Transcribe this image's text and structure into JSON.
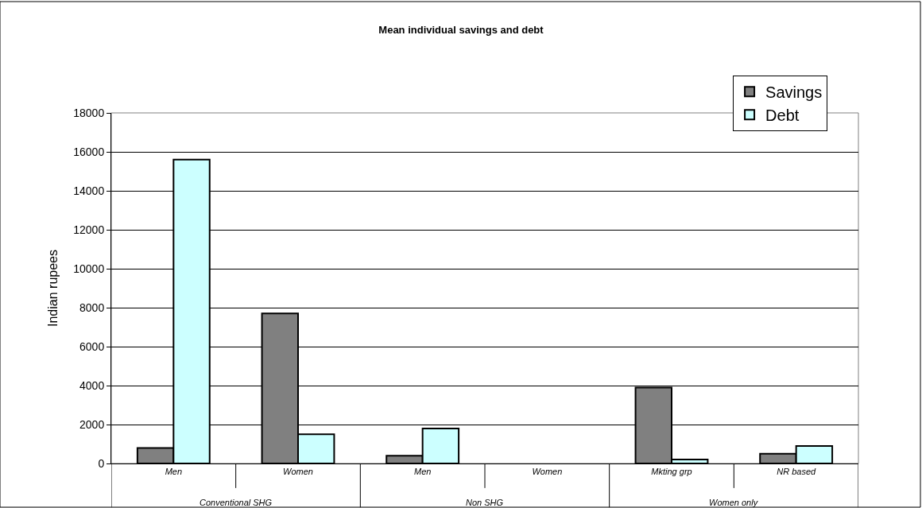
{
  "chart_data": {
    "type": "bar",
    "title": "Mean individual savings and debt",
    "ylabel": "Indian rupees",
    "categories": [
      "Men",
      "Women",
      "Men",
      "Women",
      "Mkting grp",
      "NR based"
    ],
    "series": [
      {
        "name": "Savings",
        "color": "#808080",
        "values": [
          800,
          7700,
          400,
          null,
          3900,
          500
        ]
      },
      {
        "name": "Debt",
        "color": "#ccffff",
        "values": [
          15600,
          1500,
          1800,
          null,
          200,
          900
        ]
      }
    ],
    "annotations": [
      "Conventional SHG",
      "Non SHG",
      "Women only"
    ],
    "ylim": [
      0,
      18000
    ],
    "yticks": [
      0,
      2000,
      4000,
      6000,
      8000,
      10000,
      12000,
      14000,
      16000,
      18000
    ],
    "grid": "y",
    "legend": "top right"
  }
}
